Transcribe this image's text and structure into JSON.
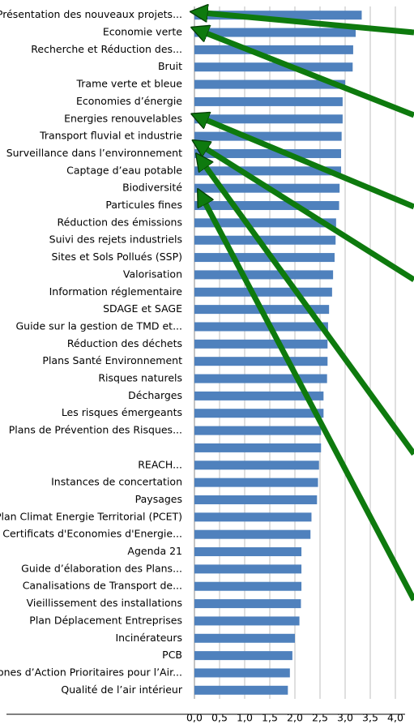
{
  "chart_data": {
    "type": "bar",
    "orientation": "horizontal",
    "categories": [
      "Présentation des nouveaux projets...",
      "Economie verte",
      "Recherche et Réduction des...",
      "Bruit",
      "Trame verte et bleue",
      "Economies d’énergie",
      "Energies renouvelables",
      "Transport fluvial et industrie",
      "Surveillance dans l’environnement",
      "Captage d’eau potable",
      "Biodiversité",
      "Particules fines",
      "Réduction des émissions",
      "Suivi des rejets industriels",
      "Sites et Sols Pollués (SSP)",
      "Valorisation",
      "Information réglementaire",
      "SDAGE et SAGE",
      "Guide sur la gestion de TMD et...",
      "Réduction des déchets",
      "Plans Santé Environnement",
      "Risques naturels",
      "Décharges",
      "Les risques émergeants",
      "Plans de Prévention des Risques...",
      null,
      "REACH...",
      "Instances de concertation",
      "Paysages",
      "Plan Climat Energie Territorial (PCET)",
      "Certificats d'Economies d'Energie...",
      "Agenda 21",
      "Guide d’élaboration des Plans...",
      "Canalisations de Transport de...",
      "Vieillissement des installations",
      "Plan Déplacement Entreprises",
      "Incinérateurs",
      "PCB",
      "Zones d’Action Prioritaires pour l’Air...",
      "Qualité de l’air intérieur"
    ],
    "values": [
      3.33,
      3.21,
      3.16,
      3.15,
      3.0,
      2.95,
      2.95,
      2.93,
      2.92,
      2.92,
      2.89,
      2.88,
      2.82,
      2.81,
      2.79,
      2.76,
      2.74,
      2.68,
      2.66,
      2.65,
      2.65,
      2.64,
      2.57,
      2.57,
      2.52,
      2.52,
      2.48,
      2.46,
      2.44,
      2.33,
      2.31,
      2.13,
      2.13,
      2.13,
      2.12,
      2.09,
      2.0,
      1.95,
      1.9,
      1.86
    ],
    "color": "#4f81bd",
    "xlim": [
      0,
      4
    ],
    "xticks": [
      {
        "value": 0,
        "label": "0,0"
      },
      {
        "value": 0.5,
        "label": "0,5"
      },
      {
        "value": 1,
        "label": "1,0"
      },
      {
        "value": 1.5,
        "label": "1,5"
      },
      {
        "value": 2,
        "label": "2,0"
      },
      {
        "value": 2.5,
        "label": "2,5"
      },
      {
        "value": 3,
        "label": "3,0"
      },
      {
        "value": 3.5,
        "label": "3,5"
      },
      {
        "value": 4,
        "label": "4,0"
      }
    ],
    "grid": true
  }
}
